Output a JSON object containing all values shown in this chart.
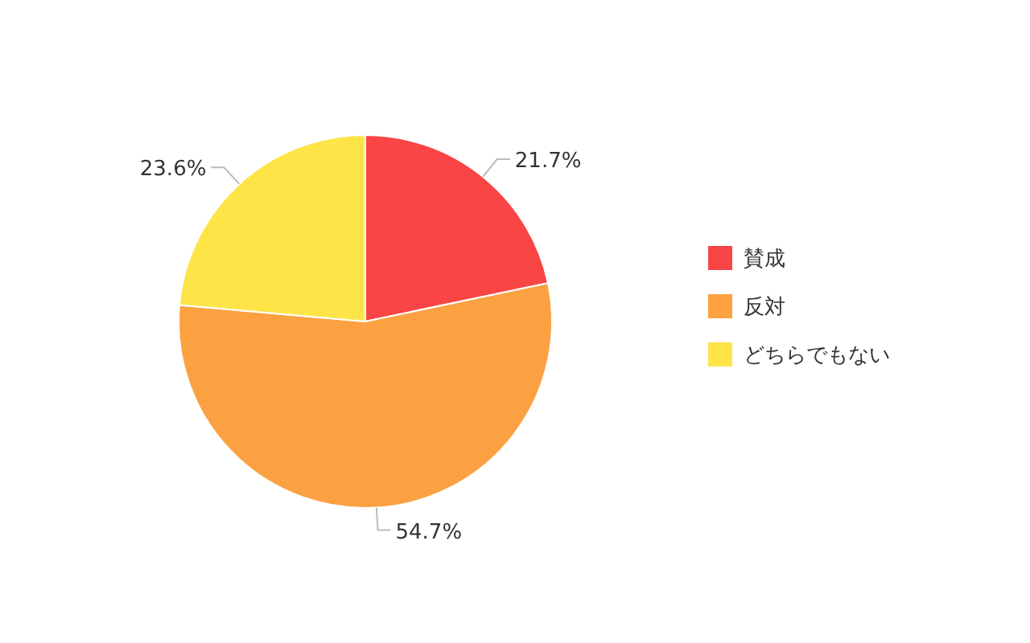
{
  "chart_data": {
    "type": "pie",
    "categories": [
      "賛成",
      "反対",
      "どちらでもない"
    ],
    "values": [
      21.7,
      54.7,
      23.6
    ],
    "colors": [
      "#f94545",
      "#fba142",
      "#ffe448"
    ],
    "value_labels": [
      "21.7%",
      "54.7%",
      "23.6%"
    ],
    "legend": "right"
  }
}
